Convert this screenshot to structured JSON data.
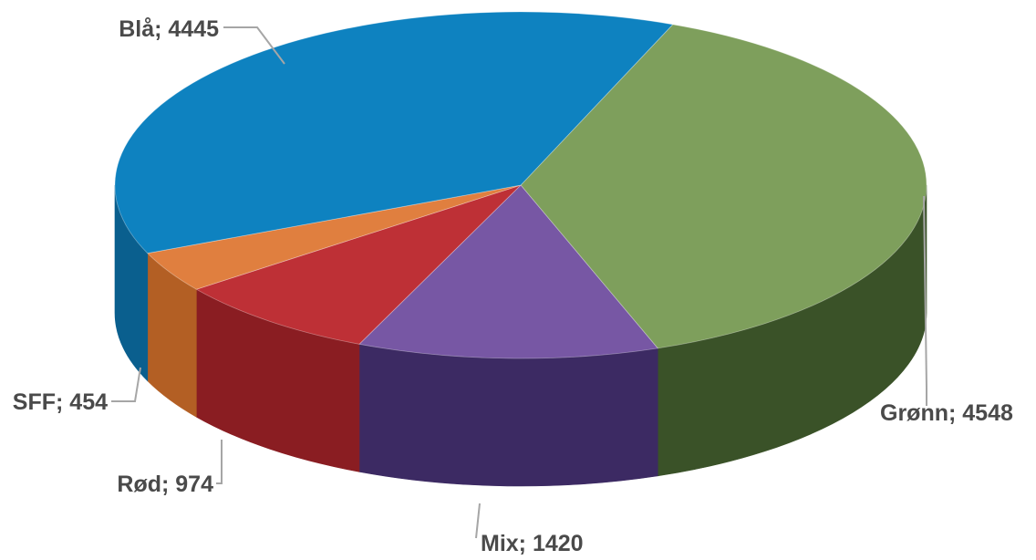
{
  "chart_data": {
    "type": "pie",
    "style": "3d",
    "title": "",
    "slices": [
      {
        "label": "Grønn; 4548",
        "name": "Grønn",
        "value": 4548,
        "color": "#7e9f5c",
        "side_color": "#3a5228"
      },
      {
        "label": "Mix; 1420",
        "name": "Mix",
        "value": 1420,
        "color": "#7757a4",
        "side_color": "#3c2a63"
      },
      {
        "label": "Rød; 974",
        "name": "Rød",
        "value": 974,
        "color": "#be3036",
        "side_color": "#8a1d22"
      },
      {
        "label": "SFF; 454",
        "name": "SFF",
        "value": 454,
        "color": "#e07f3f",
        "side_color": "#b35f24"
      },
      {
        "label": "Blå; 4445",
        "name": "Blå",
        "value": 4445,
        "color": "#0e82c0",
        "side_color": "#0a5f8e"
      }
    ]
  }
}
